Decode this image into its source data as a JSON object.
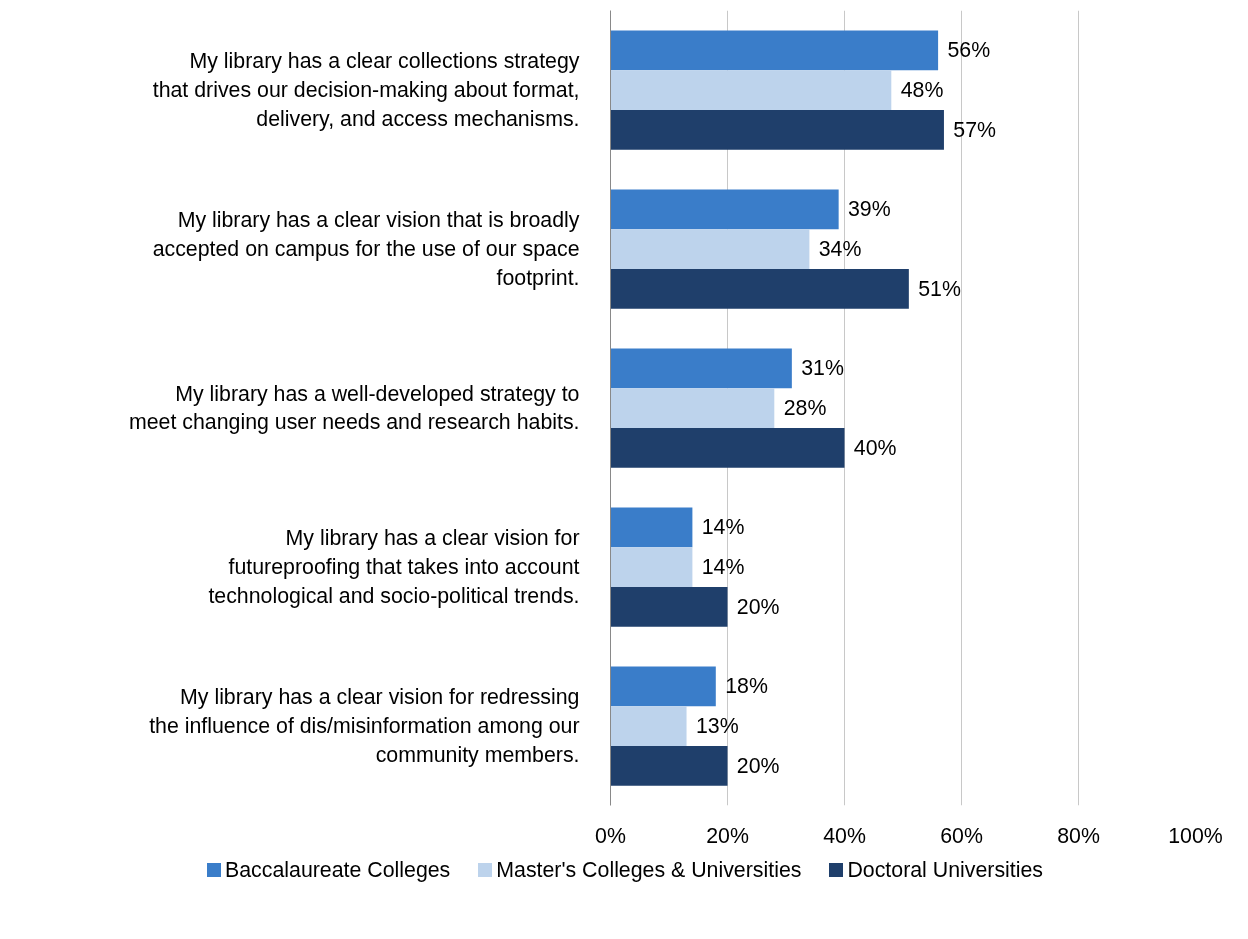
{
  "chart_data": {
    "type": "bar",
    "orientation": "horizontal",
    "categories": [
      "My library has a clear collections strategy that drives our decision-making about format, delivery, and access mechanisms.",
      "My library has a clear vision that is broadly accepted on campus for the use of our space footprint.",
      "My library has a well-developed strategy to meet changing user needs and research habits.",
      "My library has a clear vision for futureproofing that takes into account technological and socio-political trends.",
      "My library has a clear vision for redressing the influence of dis/misinformation among our community members."
    ],
    "series": [
      {
        "name": "Baccalaureate Colleges",
        "color": "#3a7dc9",
        "values": [
          56,
          39,
          31,
          14,
          18
        ],
        "value_labels": [
          "56%",
          "39%",
          "31%",
          "14%",
          "18%"
        ]
      },
      {
        "name": "Master's Colleges & Universities",
        "color": "#bdd3ec",
        "values": [
          48,
          34,
          28,
          14,
          13
        ],
        "value_labels": [
          "48%",
          "34%",
          "28%",
          "14%",
          "13%"
        ]
      },
      {
        "name": "Doctoral Universities",
        "color": "#1f3f6b",
        "values": [
          57,
          51,
          40,
          20,
          20
        ],
        "value_labels": [
          "57%",
          "51%",
          "40%",
          "20%",
          "20%"
        ]
      }
    ],
    "xlim": [
      0,
      100
    ],
    "xticks": [
      {
        "value": 0,
        "label": "0%"
      },
      {
        "value": 20,
        "label": "20%"
      },
      {
        "value": 40,
        "label": "40%"
      },
      {
        "value": 60,
        "label": "60%"
      },
      {
        "value": 80,
        "label": "80%"
      },
      {
        "value": 100,
        "label": "100%"
      }
    ],
    "grid": "x",
    "legend": "bottom"
  }
}
